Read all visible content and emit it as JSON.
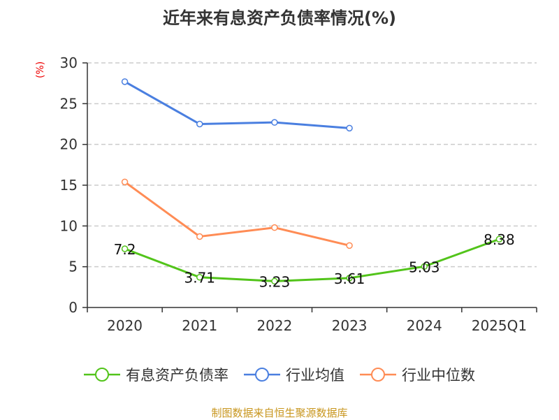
{
  "chart_data": {
    "type": "line",
    "title": "近年来有息资产负债率情况(%)",
    "ylabel": "(%)",
    "categories": [
      "2020",
      "2021",
      "2022",
      "2023",
      "2024",
      "2025Q1"
    ],
    "ylim": [
      0,
      30
    ],
    "yticks": [
      0,
      5,
      10,
      15,
      20,
      25,
      30
    ],
    "grid": true,
    "legend_position": "bottom",
    "series": [
      {
        "name": "有息资产负债率",
        "color": "#52c41a",
        "values": [
          7.2,
          3.71,
          3.23,
          3.61,
          5.03,
          8.38
        ],
        "labels": [
          "7.2",
          "3.71",
          "3.23",
          "3.61",
          "5.03",
          "8.38"
        ]
      },
      {
        "name": "行业均值",
        "color": "#4a7fe0",
        "values": [
          27.7,
          22.5,
          22.7,
          22.0,
          null,
          null
        ]
      },
      {
        "name": "行业中位数",
        "color": "#ff8c55",
        "values": [
          15.4,
          8.7,
          9.8,
          7.6,
          null,
          null
        ]
      }
    ]
  },
  "footer": "制图数据来自恒生聚源数据库"
}
